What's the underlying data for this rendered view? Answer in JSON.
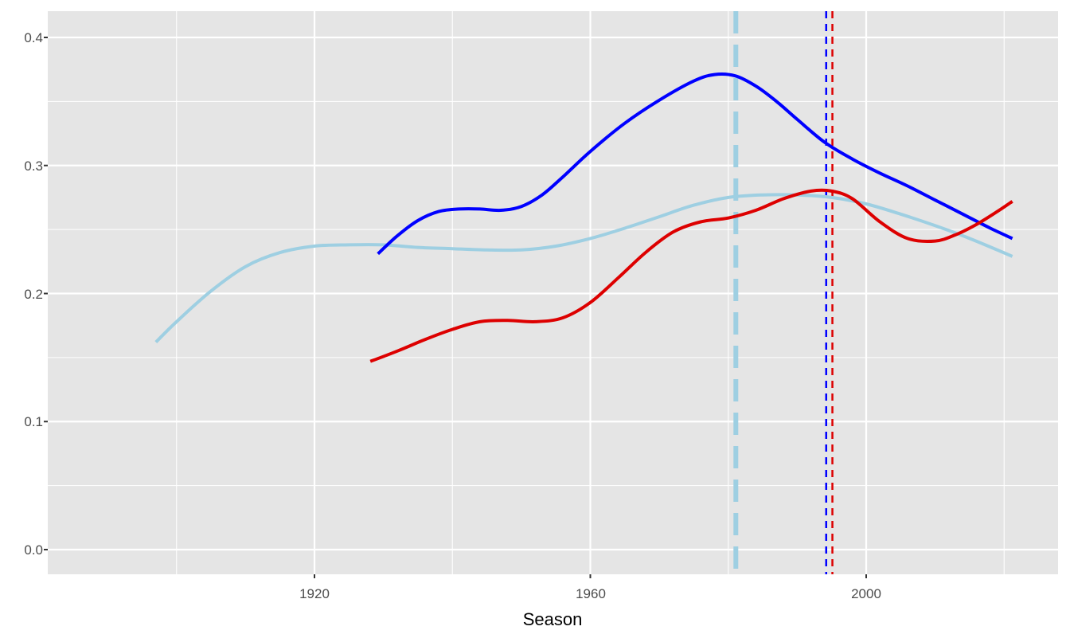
{
  "chart_data": {
    "type": "line",
    "title": "",
    "xlabel": "Season",
    "ylabel": "",
    "xlim": [
      1886.6,
      2028.0
    ],
    "ylim": [
      -0.019,
      0.42
    ],
    "grid": true,
    "legend": "none",
    "x_ticks": [
      1920,
      1960,
      2000
    ],
    "x_minor_ticks": [
      1900,
      1940,
      1980,
      2020
    ],
    "y_ticks": [
      0.0,
      0.1,
      0.2,
      0.3,
      0.4
    ],
    "y_tick_labels": [
      "0.0",
      "0.1",
      "0.2",
      "0.3",
      "0.4"
    ],
    "y_minor_ticks": [
      0.05,
      0.15,
      0.25,
      0.35
    ],
    "series": [
      {
        "name": "light-blue-smooth",
        "color": "#9ECFE2",
        "width": 4,
        "x": [
          1897.0,
          1900,
          1905,
          1910,
          1915,
          1920,
          1925,
          1930,
          1935,
          1940,
          1945,
          1950,
          1955,
          1960,
          1965,
          1970,
          1975,
          1980,
          1985,
          1990,
          1995,
          2000,
          2005,
          2010,
          2015,
          2021.2
        ],
        "values": [
          0.162,
          0.178,
          0.202,
          0.221,
          0.232,
          0.237,
          0.238,
          0.238,
          0.236,
          0.235,
          0.234,
          0.234,
          0.237,
          0.243,
          0.251,
          0.26,
          0.269,
          0.275,
          0.277,
          0.277,
          0.275,
          0.27,
          0.262,
          0.253,
          0.243,
          0.229
        ]
      },
      {
        "name": "blue-smooth",
        "color": "#0000FF",
        "width": 4,
        "x": [
          1929.2,
          1932,
          1935,
          1938,
          1941,
          1944,
          1947,
          1950,
          1953,
          1956,
          1960,
          1965,
          1970,
          1975,
          1978,
          1981,
          1984,
          1987,
          1990,
          1994,
          1998,
          2002,
          2006,
          2010,
          2014,
          2018,
          2021.2
        ],
        "values": [
          0.231,
          0.245,
          0.257,
          0.264,
          0.266,
          0.266,
          0.265,
          0.268,
          0.277,
          0.291,
          0.311,
          0.333,
          0.351,
          0.366,
          0.371,
          0.37,
          0.362,
          0.35,
          0.336,
          0.318,
          0.305,
          0.294,
          0.284,
          0.273,
          0.262,
          0.251,
          0.243
        ]
      },
      {
        "name": "red-smooth",
        "color": "#DD0000",
        "width": 4,
        "x": [
          1928.1,
          1932,
          1936,
          1940,
          1944,
          1948,
          1952,
          1956,
          1960,
          1964,
          1968,
          1972,
          1976,
          1980,
          1984,
          1988,
          1992,
          1995,
          1998,
          2002,
          2006,
          2010,
          2013,
          2016,
          2019,
          2021.2
        ],
        "values": [
          0.147,
          0.155,
          0.164,
          0.172,
          0.178,
          0.179,
          0.178,
          0.181,
          0.193,
          0.212,
          0.232,
          0.248,
          0.256,
          0.259,
          0.265,
          0.274,
          0.28,
          0.28,
          0.274,
          0.256,
          0.243,
          0.241,
          0.246,
          0.254,
          0.264,
          0.272
        ]
      }
    ],
    "vlines": [
      {
        "name": "light-blue-vline",
        "x": 1981.1,
        "color": "#9ECFE2",
        "style": "longdash",
        "width": 6
      },
      {
        "name": "blue-vline",
        "x": 1994.2,
        "color": "#0000FF",
        "style": "dashed",
        "width": 2.5
      },
      {
        "name": "red-vline",
        "x": 1995.1,
        "color": "#DD0000",
        "style": "dashed",
        "width": 2.5
      }
    ]
  },
  "labels": {
    "x_axis_title": "Season",
    "x_tick_1920": "1920",
    "x_tick_1960": "1960",
    "x_tick_2000": "2000",
    "y_tick_0": "0.0",
    "y_tick_1": "0.1",
    "y_tick_2": "0.2",
    "y_tick_3": "0.3",
    "y_tick_4": "0.4"
  }
}
